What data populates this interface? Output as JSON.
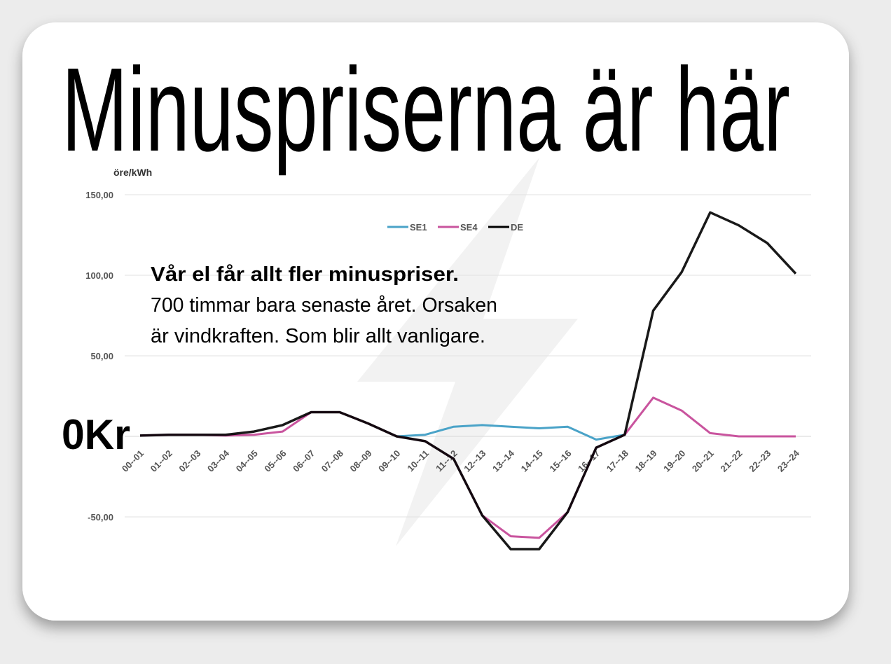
{
  "chart_data": {
    "type": "line",
    "title": "Minuspriserna är här",
    "y_label": "öre/kWh",
    "annotations": [
      "Vår el får allt fler minuspriser.",
      "700 timmar bara senaste året. Orsaken",
      "är vindkraften. Som blir allt vanligare.",
      "0Kr"
    ],
    "categories": [
      "00--01",
      "01--02",
      "02--03",
      "03--04",
      "04--05",
      "05--06",
      "06--07",
      "07--08",
      "08--09",
      "09--10",
      "10--11",
      "11--12",
      "12--13",
      "13--14",
      "14--15",
      "15--16",
      "16--17",
      "17--18",
      "18--19",
      "19--20",
      "20--21",
      "21--22",
      "22--23",
      "23--24"
    ],
    "series": [
      {
        "name": "SE1",
        "color": "#4aa3c8",
        "values": [
          null,
          null,
          null,
          null,
          null,
          null,
          null,
          null,
          null,
          0,
          1,
          6,
          7,
          6,
          5,
          6,
          -2,
          1,
          null,
          null,
          null,
          null,
          null,
          null
        ]
      },
      {
        "name": "SE4",
        "color": "#c9549e",
        "values": [
          0.5,
          1,
          1,
          0.5,
          1,
          3,
          15,
          15,
          8,
          0,
          -3,
          -14,
          -49,
          -62,
          -63,
          -47,
          -7,
          1,
          24,
          16,
          2,
          0,
          0,
          0
        ]
      },
      {
        "name": "DE",
        "color": "#000000",
        "values": [
          0.5,
          1,
          1,
          1,
          3,
          7,
          15,
          15,
          8,
          0,
          -3,
          -14,
          -49,
          -70,
          -70,
          -47,
          -7,
          1,
          78,
          102,
          139,
          131,
          120,
          101
        ]
      }
    ],
    "ylim": [
      -75,
      150
    ],
    "yticks": [
      {
        "value": -50,
        "label": "-50,00"
      },
      {
        "value": 50,
        "label": "50,00"
      },
      {
        "value": 100,
        "label": "100,00"
      },
      {
        "value": 150,
        "label": "150,00"
      }
    ],
    "grid": true,
    "legend": "top"
  }
}
